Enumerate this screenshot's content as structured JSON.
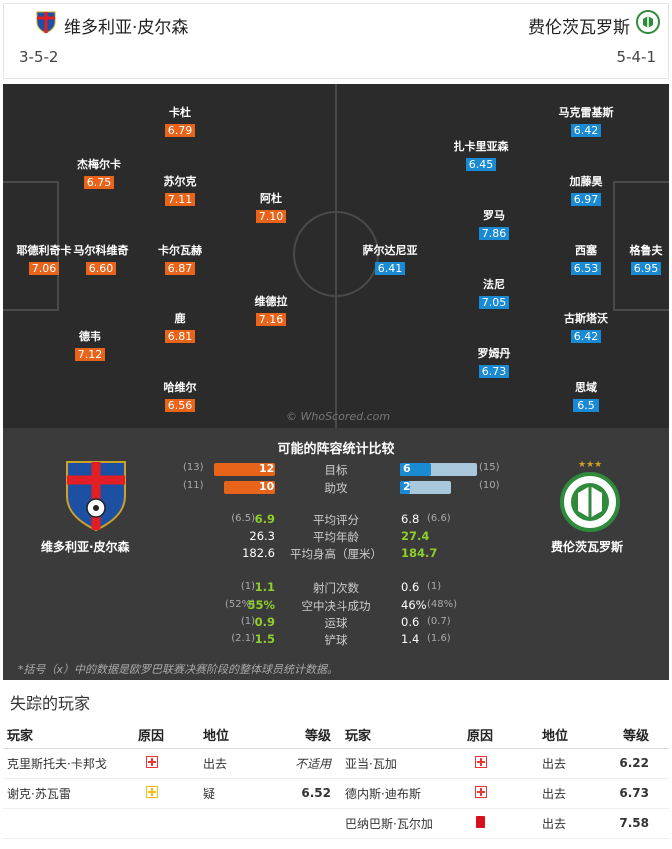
{
  "header": {
    "home_team": "维多利亚·皮尔森",
    "away_team": "费伦茨瓦罗斯",
    "home_formation": "3-5-2",
    "away_formation": "5-4-1"
  },
  "colors": {
    "home_accent": "#e8641b",
    "away_accent": "#1a8ad3",
    "bar_home": "#e8641b",
    "bar_away": "#a9c8dc",
    "positive": "#8fcf2a"
  },
  "pitch": {
    "watermark": "© WhoScored.com",
    "home_players": [
      {
        "name": "耶德利奇卡",
        "rating": "7.06"
      },
      {
        "name": "杰梅尔卡",
        "rating": "6.75"
      },
      {
        "name": "马尔科维奇",
        "rating": "6.60"
      },
      {
        "name": "德韦",
        "rating": "7.12"
      },
      {
        "name": "卡杜",
        "rating": "6.79"
      },
      {
        "name": "苏尔克",
        "rating": "7.11"
      },
      {
        "name": "卡尔瓦赫",
        "rating": "6.87"
      },
      {
        "name": "鹿",
        "rating": "6.81"
      },
      {
        "name": "哈维尔",
        "rating": "6.56"
      },
      {
        "name": "阿杜",
        "rating": "7.10"
      },
      {
        "name": "维德拉",
        "rating": "7.16"
      }
    ],
    "away_players": [
      {
        "name": "萨尔达尼亚",
        "rating": "6.41"
      },
      {
        "name": "扎卡里亚森",
        "rating": "6.45"
      },
      {
        "name": "罗马",
        "rating": "7.86"
      },
      {
        "name": "法尼",
        "rating": "7.05"
      },
      {
        "name": "罗姆丹",
        "rating": "6.73"
      },
      {
        "name": "马克雷基斯",
        "rating": "6.42"
      },
      {
        "name": "加藤昊",
        "rating": "6.97"
      },
      {
        "name": "西塞",
        "rating": "6.53"
      },
      {
        "name": "古斯塔沃",
        "rating": "6.42"
      },
      {
        "name": "思域",
        "rating": "6.5"
      },
      {
        "name": "格鲁夫",
        "rating": "6.95"
      }
    ]
  },
  "comparison": {
    "title": "可能的阵容统计比较",
    "home_team": "维多利亚·皮尔森",
    "away_team": "费伦茨瓦罗斯",
    "goals": {
      "label": "目标",
      "home": "12",
      "home_prev": "(13)",
      "away": "6",
      "away_prev": "(15)",
      "home_value": 12,
      "home_prev_value": 13,
      "away_value": 6,
      "away_prev_value": 15
    },
    "assists": {
      "label": "助攻",
      "home": "10",
      "home_prev": "(11)",
      "away": "2",
      "away_prev": "(10)",
      "home_value": 10,
      "home_prev_value": 11,
      "away_value": 2,
      "away_prev_value": 10
    },
    "stats": [
      {
        "label": "平均评分",
        "home_prev": "(6.5)",
        "home": "6.9",
        "away": "6.8",
        "away_prev": "(6.6)",
        "home_hl": true,
        "away_hl": false
      },
      {
        "label": "平均年龄",
        "home_prev": "",
        "home": "26.3",
        "away": "27.4",
        "away_prev": "",
        "home_hl": false,
        "away_hl": true
      },
      {
        "label": "平均身高（厘米）",
        "home_prev": "",
        "home": "182.6",
        "away": "184.7",
        "away_prev": "",
        "home_hl": false,
        "away_hl": true
      },
      {
        "label": "射门次数",
        "home_prev": "(1)",
        "home": "1.1",
        "away": "0.6",
        "away_prev": "(1)",
        "home_hl": true,
        "away_hl": false
      },
      {
        "label": "空中决斗成功",
        "home_prev": "(52%)",
        "home": "55%",
        "away": "46%",
        "away_prev": "(48%)",
        "home_hl": true,
        "away_hl": false
      },
      {
        "label": "运球",
        "home_prev": "(1)",
        "home": "0.9",
        "away": "0.6",
        "away_prev": "(0.7)",
        "home_hl": true,
        "away_hl": false
      },
      {
        "label": "铲球",
        "home_prev": "(2.1)",
        "home": "1.5",
        "away": "1.4",
        "away_prev": "(1.6)",
        "home_hl": true,
        "away_hl": false
      }
    ],
    "footnote": "*括号（x）中的数据是欧罗巴联赛决赛阶段的整体球员统计数据。"
  },
  "missing": {
    "title": "失踪的玩家",
    "headers": {
      "player": "玩家",
      "reason": "原因",
      "status": "地位",
      "rating": "等级"
    },
    "home": [
      {
        "player": "克里斯托夫·卡邦戈",
        "reason_icon": "injury-icon",
        "status": "出去",
        "rating": "不适用"
      },
      {
        "player": "谢克·苏瓦雷",
        "reason_icon": "doubt-icon",
        "status": "疑",
        "rating": "6.52"
      }
    ],
    "away": [
      {
        "player": "亚当·瓦加",
        "reason_icon": "injury-icon",
        "status": "出去",
        "rating": "6.22"
      },
      {
        "player": "德内斯·迪布斯",
        "reason_icon": "injury-icon",
        "status": "出去",
        "rating": "6.73"
      },
      {
        "player": "巴纳巴斯·瓦尔加",
        "reason_icon": "red-card-icon",
        "status": "出去",
        "rating": "7.58"
      }
    ]
  }
}
